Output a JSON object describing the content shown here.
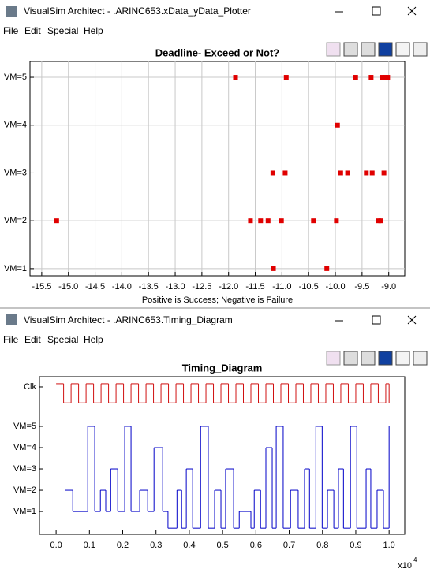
{
  "windows": [
    {
      "title": "VisualSim Architect - .ARINC653.xData_yData_Plotter",
      "menu": [
        "File",
        "Edit",
        "Special",
        "Help"
      ]
    },
    {
      "title": "VisualSim Architect - .ARINC653.Timing_Diagram",
      "menu": [
        "File",
        "Edit",
        "Special",
        "Help"
      ]
    }
  ],
  "chart_data": [
    {
      "type": "scatter",
      "title": "Deadline- Exceed or Not?",
      "x_label": "Positive is Success; Negative is Failure",
      "grid": true,
      "xlim": [
        -15.72,
        -8.7
      ],
      "ylim": [
        0.85,
        5.33
      ],
      "xticks": [
        -15.5,
        {
          "value": -15,
          "label": "-15.0"
        },
        -14.5,
        {
          "value": -14,
          "label": "-14.0"
        },
        -13.5,
        {
          "value": -13,
          "label": "-13.0"
        },
        -12.5,
        {
          "value": -12,
          "label": "-12.0"
        },
        -11.5,
        {
          "value": -11,
          "label": "-11.0"
        },
        -10.5,
        {
          "value": -10,
          "label": "-10.0"
        },
        -9.5,
        {
          "value": -9,
          "label": "-9.0"
        }
      ],
      "yticks": [
        {
          "value": 1,
          "label": "VM=1"
        },
        {
          "value": 2,
          "label": "VM=2"
        },
        {
          "value": 3,
          "label": "VM=3"
        },
        {
          "value": 4,
          "label": "VM=4"
        },
        {
          "value": 5,
          "label": "VM=5"
        }
      ],
      "series": [
        {
          "color": "#e00000",
          "x": [
            -11.87,
            -10.92,
            -9.62,
            -9.33,
            -9.12,
            -9.06,
            -9.02,
            -9.96,
            -11.17,
            -10.94,
            -9.9,
            -9.77,
            -9.42,
            -9.31,
            -9.09,
            -15.22,
            -11.59,
            -11.4,
            -11.26,
            -11.01,
            -10.41,
            -9.98,
            -9.19,
            -9.15,
            -11.16,
            -10.16
          ],
          "values": [
            5,
            5,
            5,
            5,
            5,
            5,
            5,
            4,
            3,
            3,
            3,
            3,
            3,
            3,
            3,
            2,
            2,
            2,
            2,
            2,
            2,
            2,
            2,
            2,
            1,
            1
          ]
        }
      ]
    },
    {
      "type": "step",
      "title": "Timing_Diagram",
      "grid": false,
      "x_multiplier": {
        "base": "x10",
        "exponent": "4"
      },
      "xlim": [
        -0.05,
        1.047
      ],
      "ylim": [
        -0.07,
        7.33
      ],
      "xticks": [
        {
          "value": 0,
          "label": "0.0"
        },
        0.1,
        0.2,
        0.3,
        0.4,
        0.5,
        0.6,
        0.7,
        0.8,
        0.9,
        {
          "value": 1,
          "label": "1.0"
        }
      ],
      "yticks": [
        {
          "value": 6.85,
          "label": "Clk"
        },
        {
          "value": 5,
          "label": "VM=5"
        },
        {
          "value": 4,
          "label": "VM=4"
        },
        {
          "value": 3,
          "label": "VM=3"
        },
        {
          "value": 2,
          "label": "VM=2"
        },
        {
          "value": 1,
          "label": "VM=1"
        }
      ],
      "series": [
        {
          "color": "#d01010",
          "x": [
            0,
            0.0225,
            0.045,
            0.0675,
            0.09,
            0.1125,
            0.135,
            0.1575,
            0.18,
            0.2025,
            0.225,
            0.2475,
            0.27,
            0.2925,
            0.315,
            0.3375,
            0.36,
            0.3825,
            0.405,
            0.4275,
            0.45,
            0.4725,
            0.495,
            0.5175,
            0.54,
            0.5625,
            0.585,
            0.6075,
            0.63,
            0.6525,
            0.675,
            0.6975,
            0.72,
            0.7425,
            0.765,
            0.7875,
            0.81,
            0.8325,
            0.855,
            0.8775,
            0.9,
            0.9225,
            0.945,
            0.9675,
            0.99,
            1
          ],
          "values": [
            7,
            6.1,
            7,
            6.1,
            7,
            6.1,
            7,
            6.1,
            7,
            6.1,
            7,
            6.1,
            7,
            6.1,
            7,
            6.1,
            7,
            6.1,
            7,
            6.1,
            7,
            6.1,
            7,
            6.1,
            7,
            6.1,
            7,
            6.1,
            7,
            6.1,
            7,
            6.1,
            7,
            6.1,
            7,
            6.1,
            7,
            6.1,
            7,
            6.1,
            7,
            6.1,
            7,
            6.1,
            7,
            6.1
          ]
        },
        {
          "color": "#0000c8",
          "x": [
            0.026,
            0.05,
            0.095,
            0.116,
            0.133,
            0.149,
            0.164,
            0.185,
            0.206,
            0.225,
            0.251,
            0.275,
            0.294,
            0.32,
            0.336,
            0.363,
            0.377,
            0.391,
            0.41,
            0.434,
            0.457,
            0.476,
            0.495,
            0.509,
            0.533,
            0.55,
            0.585,
            0.595,
            0.614,
            0.63,
            0.649,
            0.661,
            0.682,
            0.704,
            0.727,
            0.746,
            0.761,
            0.78,
            0.799,
            0.815,
            0.834,
            0.848,
            0.863,
            0.884,
            0.903,
            0.931,
            0.945,
            0.964,
            0.983,
            1
          ],
          "values": [
            2,
            1,
            5,
            1,
            2,
            1,
            3,
            1,
            5,
            1,
            2,
            1,
            4,
            1,
            0.22,
            2,
            0.22,
            3,
            0.22,
            5,
            0.22,
            2,
            0.22,
            3,
            0.22,
            1,
            0.22,
            2,
            0.22,
            4,
            0.22,
            5,
            0.22,
            2,
            0.22,
            3,
            0.22,
            5,
            0.22,
            2,
            0.22,
            3,
            0.22,
            5,
            0.22,
            3,
            0.22,
            2,
            0.22,
            5
          ]
        }
      ]
    }
  ]
}
